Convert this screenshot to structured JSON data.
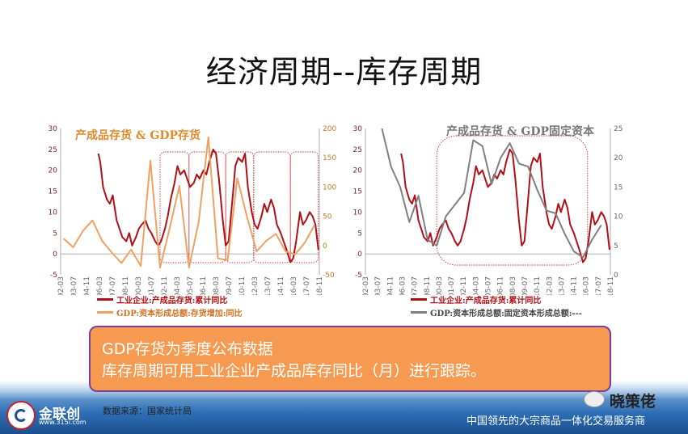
{
  "title": "经济周期--库存周期",
  "chart_data": [
    {
      "type": "line",
      "title": "产成品存货 & GDP存货",
      "x_ticks": [
        "1992-03",
        "1993-07",
        "1994-11",
        "1996-03",
        "1997-07",
        "1998-11",
        "2000-03",
        "2001-07",
        "2002-11",
        "2004-03",
        "2005-07",
        "2006-11",
        "2008-03",
        "2009-07",
        "2010-11",
        "2012-03",
        "2013-07",
        "2014-11",
        "2016-03",
        "2017-07",
        "2018-11"
      ],
      "y_left_ticks": [
        "30",
        "25",
        "20",
        "15",
        "10",
        "5",
        "0",
        "-5"
      ],
      "ylim_left": [
        -5,
        30
      ],
      "y_right_ticks": [
        "200",
        "150",
        "100",
        "50",
        "0",
        "-50"
      ],
      "ylim_right": [
        -50,
        200
      ],
      "xlim": [
        1992.2,
        2019.0
      ],
      "series": [
        {
          "name": "工业企业:产成品存货:累计同比",
          "axis": "left",
          "color": "#b01015",
          "x": [
            1996.1,
            1996.3,
            1996.6,
            1997.0,
            1997.3,
            1997.6,
            1998.0,
            1998.3,
            1998.6,
            1999.0,
            1999.3,
            1999.6,
            2000.0,
            2000.3,
            2000.6,
            2001.0,
            2001.3,
            2001.6,
            2002.0,
            2002.3,
            2002.6,
            2003.0,
            2003.3,
            2003.6,
            2004.0,
            2004.3,
            2004.6,
            2005.0,
            2005.3,
            2005.6,
            2006.0,
            2006.3,
            2006.6,
            2007.0,
            2007.3,
            2007.6,
            2008.0,
            2008.3,
            2008.6,
            2009.0,
            2009.3,
            2009.6,
            2010.0,
            2010.3,
            2010.6,
            2011.0,
            2011.3,
            2011.6,
            2012.0,
            2012.3,
            2012.6,
            2013.0,
            2013.3,
            2013.6,
            2014.0,
            2014.3,
            2014.6,
            2015.0,
            2015.3,
            2015.6,
            2016.0,
            2016.3,
            2016.6,
            2017.0,
            2017.3,
            2017.6,
            2018.0,
            2018.3,
            2018.6,
            2018.9
          ],
          "values": [
            24,
            22,
            16,
            13,
            12,
            14,
            8,
            6,
            4,
            3,
            5,
            2,
            4,
            6,
            7,
            8,
            6,
            5,
            3,
            2,
            3,
            6,
            9,
            13,
            17,
            21,
            19,
            20,
            18,
            16,
            17,
            19,
            18,
            20,
            19,
            22,
            25,
            24,
            18,
            8,
            2,
            3,
            13,
            21,
            23,
            22,
            24,
            16,
            10,
            7,
            6,
            9,
            12,
            10,
            13,
            11,
            7,
            5,
            3,
            1,
            -2,
            -1,
            3,
            10,
            7,
            8,
            10,
            9,
            7,
            1
          ]
        },
        {
          "name": "GDP:资本形成总额:存货增加:同比",
          "axis": "right",
          "color": "#f0a060",
          "x": [
            1992.5,
            1993.5,
            1994.5,
            1995.5,
            1996.5,
            1997.5,
            1998.5,
            1999.5,
            2000.5,
            2001.5,
            2002.5,
            2003.5,
            2004.5,
            2005.5,
            2006.5,
            2007.5,
            2008.5,
            2009.5,
            2010.5,
            2011.5,
            2012.5,
            2013.5,
            2014.5,
            2015.5,
            2016.5,
            2017.5,
            2018.5
          ],
          "values": [
            12,
            -3,
            25,
            43,
            8,
            -12,
            -30,
            -7,
            -35,
            145,
            -38,
            30,
            102,
            -38,
            40,
            185,
            -22,
            -25,
            115,
            50,
            -10,
            8,
            20,
            -10,
            -15,
            5,
            35
          ]
        }
      ],
      "highlight_periods": [
        [
          2002.5,
          2005.5
        ],
        [
          2005.5,
          2009.3
        ],
        [
          2009.3,
          2012.2
        ],
        [
          2012.2,
          2016.0
        ],
        [
          2016.0,
          2018.9
        ]
      ]
    },
    {
      "type": "line",
      "title": "产成品存货 & GDP固定资本",
      "x_ticks": [
        "1992-03",
        "1993-07",
        "1994-11",
        "1996-03",
        "1997-07",
        "1998-11",
        "2000-03",
        "2001-07",
        "2002-11",
        "2004-03",
        "2005-07",
        "2006-11",
        "2008-03",
        "2009-07",
        "2010-11",
        "2012-03",
        "2013-07",
        "2014-11",
        "2016-03",
        "2017-07",
        "2018-11"
      ],
      "y_left_ticks": [
        "30",
        "25",
        "20",
        "15",
        "10",
        "5",
        "0",
        "-5"
      ],
      "ylim_left": [
        -5,
        30
      ],
      "y_right_ticks": [
        "25",
        "20",
        "15",
        "10",
        "5",
        "0"
      ],
      "ylim_right": [
        0,
        25
      ],
      "xlim": [
        1992.2,
        2019.0
      ],
      "series": [
        {
          "name": "工业企业:产成品存货:累计同比",
          "axis": "left",
          "color": "#b01015",
          "x": [
            1996.1,
            1996.3,
            1996.6,
            1997.0,
            1997.3,
            1997.6,
            1998.0,
            1998.3,
            1998.6,
            1999.0,
            1999.3,
            1999.6,
            2000.0,
            2000.3,
            2000.6,
            2001.0,
            2001.3,
            2001.6,
            2002.0,
            2002.3,
            2002.6,
            2003.0,
            2003.3,
            2003.6,
            2004.0,
            2004.3,
            2004.6,
            2005.0,
            2005.3,
            2005.6,
            2006.0,
            2006.3,
            2006.6,
            2007.0,
            2007.3,
            2007.6,
            2008.0,
            2008.3,
            2008.6,
            2009.0,
            2009.3,
            2009.6,
            2010.0,
            2010.3,
            2010.6,
            2011.0,
            2011.3,
            2011.6,
            2012.0,
            2012.3,
            2012.6,
            2013.0,
            2013.3,
            2013.6,
            2014.0,
            2014.3,
            2014.6,
            2015.0,
            2015.3,
            2015.6,
            2016.0,
            2016.3,
            2016.6,
            2017.0,
            2017.3,
            2017.6,
            2018.0,
            2018.3,
            2018.6,
            2018.9
          ],
          "values": [
            24,
            22,
            16,
            13,
            12,
            14,
            8,
            6,
            4,
            3,
            5,
            2,
            4,
            6,
            7,
            8,
            6,
            5,
            3,
            2,
            3,
            6,
            9,
            13,
            17,
            21,
            19,
            20,
            18,
            16,
            17,
            19,
            18,
            20,
            19,
            22,
            25,
            24,
            18,
            8,
            2,
            3,
            13,
            21,
            23,
            22,
            24,
            16,
            10,
            7,
            6,
            9,
            12,
            10,
            13,
            11,
            7,
            5,
            3,
            1,
            -2,
            -1,
            3,
            10,
            7,
            8,
            10,
            9,
            7,
            1
          ]
        },
        {
          "name": "GDP:资本形成总额:固定资本形成总额:---",
          "axis": "right",
          "color": "#808080",
          "x": [
            1994.0,
            1995.0,
            1996.0,
            1997.0,
            1998.0,
            1999.0,
            2000.0,
            2001.0,
            2002.0,
            2003.0,
            2004.0,
            2005.0,
            2006.0,
            2007.0,
            2008.0,
            2009.0,
            2010.0,
            2011.0,
            2012.0,
            2013.0,
            2014.0,
            2015.0,
            2016.0,
            2017.0,
            2018.0
          ],
          "values": [
            25,
            18.5,
            15,
            9,
            13.5,
            6,
            5,
            10,
            12,
            14,
            23,
            22,
            15.5,
            20,
            22.5,
            19,
            18.5,
            14.5,
            11,
            10.5,
            7,
            4,
            3,
            6,
            8.5
          ]
        }
      ],
      "highlight_periods": [
        [
          2000.0,
          2016.5
        ]
      ]
    }
  ],
  "note": {
    "line1": "GDP存货为季度公布数据",
    "line2": "库存周期可用工业企业产成品库存同比（月）进行跟踪。"
  },
  "source": "数据来源：国家统计局",
  "logo": {
    "name": "金联创",
    "url": "www.315i.com"
  },
  "wechat": {
    "name": "晓策佬"
  },
  "slogan": "中国领先的大宗商品一体化交易服务商",
  "colors": {
    "primary": "#b01015",
    "orange": "#f0a060",
    "gray": "#808080",
    "box": "#f59a50",
    "box_border": "#7a3fa0"
  }
}
